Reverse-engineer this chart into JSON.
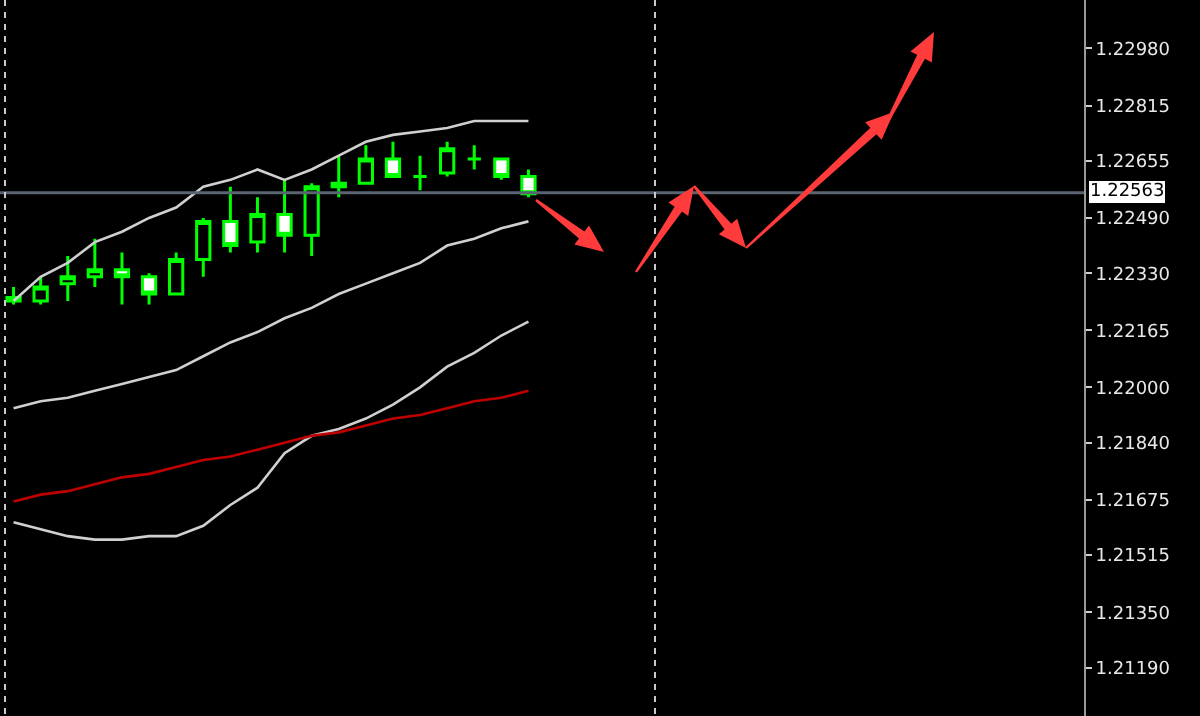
{
  "chart_data": {
    "type": "candlestick",
    "color": "#00ff00",
    "categories": [
      null,
      null,
      null,
      null,
      null,
      null,
      null,
      null,
      null,
      null,
      null,
      null,
      null,
      null,
      null,
      null,
      null,
      null,
      null,
      null,
      null,
      null,
      null,
      null,
      null,
      null,
      null,
      null,
      null,
      null,
      null,
      null,
      null,
      null,
      null,
      null,
      null,
      null,
      null,
      null
    ],
    "ohlc": [
      [
        1.2225,
        1.2229,
        1.2224,
        1.2226
      ],
      [
        1.2225,
        1.2232,
        1.2224,
        1.2229
      ],
      [
        1.223,
        1.2238,
        1.2225,
        1.2232
      ],
      [
        1.2232,
        1.2243,
        1.2229,
        1.2234
      ],
      [
        1.2234,
        1.2239,
        1.2224,
        1.2232
      ],
      [
        1.2232,
        1.2233,
        1.2224,
        1.2227
      ],
      [
        1.2227,
        1.2239,
        1.2227,
        1.2237
      ],
      [
        1.2237,
        1.2249,
        1.2232,
        1.2248
      ],
      [
        1.2248,
        1.2258,
        1.2239,
        1.2241
      ],
      [
        1.2242,
        1.2255,
        1.2239,
        1.225
      ],
      [
        1.225,
        1.226,
        1.2239,
        1.2244
      ],
      [
        1.2244,
        1.2259,
        1.2238,
        1.2258
      ],
      [
        1.2258,
        1.2267,
        1.2255,
        1.2259
      ],
      [
        1.2259,
        1.227,
        1.2259,
        1.2266
      ],
      [
        1.2266,
        1.2271,
        1.2261,
        1.2261
      ],
      [
        1.2261,
        1.2267,
        1.2257,
        1.2261
      ],
      [
        1.2262,
        1.2271,
        1.2261,
        1.2269
      ],
      [
        1.2266,
        1.227,
        1.2263,
        1.2266
      ],
      [
        1.2266,
        1.2266,
        1.226,
        1.2261
      ],
      [
        1.2261,
        1.2263,
        1.2255,
        1.2256
      ],
      null,
      null,
      null,
      null,
      null,
      null,
      null,
      null,
      null,
      null,
      null,
      null,
      null,
      null,
      null,
      null,
      null,
      null,
      null,
      null
    ],
    "series": [
      {
        "type": "line",
        "color": "#d0d0d0",
        "values": [
          1.2225,
          1.2232,
          1.2236,
          1.2242,
          1.2245,
          1.2249,
          1.2252,
          1.2258,
          1.226,
          1.2263,
          1.226,
          1.2263,
          1.2267,
          1.2271,
          1.2273,
          1.2274,
          1.2275,
          1.2277,
          1.2277,
          1.2277,
          null,
          null,
          null,
          null,
          null,
          null,
          null,
          null,
          null,
          null,
          null,
          null,
          null,
          null,
          null,
          null,
          null,
          null,
          null,
          null
        ]
      },
      {
        "type": "line",
        "color": "#d0d0d0",
        "values": [
          1.2194,
          1.2196,
          1.2197,
          1.2199,
          1.2201,
          1.2203,
          1.2205,
          1.2209,
          1.2213,
          1.2216,
          1.222,
          1.2223,
          1.2227,
          1.223,
          1.2233,
          1.2236,
          1.2241,
          1.2243,
          1.2246,
          1.2248,
          null,
          null,
          null,
          null,
          null,
          null,
          null,
          null,
          null,
          null,
          null,
          null,
          null,
          null,
          null,
          null,
          null,
          null,
          null,
          null
        ]
      },
      {
        "type": "line",
        "color": "#d0d0d0",
        "values": [
          1.2161,
          1.2159,
          1.2157,
          1.2156,
          1.2156,
          1.2157,
          1.2157,
          1.216,
          1.2166,
          1.2171,
          1.2181,
          1.2186,
          1.2188,
          1.2191,
          1.2195,
          1.22,
          1.2206,
          1.221,
          1.2215,
          1.2219,
          null,
          null,
          null,
          null,
          null,
          null,
          null,
          null,
          null,
          null,
          null,
          null,
          null,
          null,
          null,
          null,
          null,
          null,
          null,
          null
        ]
      },
      {
        "type": "line",
        "color": "#c00000",
        "values": [
          1.2167,
          1.2169,
          1.217,
          1.2172,
          1.2174,
          1.2175,
          1.2177,
          1.2179,
          1.218,
          1.2182,
          1.2184,
          1.2186,
          1.2187,
          1.2189,
          1.2191,
          1.2192,
          1.2194,
          1.2196,
          1.2197,
          1.2199,
          null,
          null,
          null,
          null,
          null,
          null,
          null,
          null,
          null,
          null,
          null,
          null,
          null,
          null,
          null,
          null,
          null,
          null,
          null,
          null
        ]
      }
    ],
    "ylim": [
      1.2105,
      1.2312
    ],
    "yticks": [
      {
        "value": 1.2298,
        "label": "1.22980"
      },
      {
        "value": 1.22815,
        "label": "1.22815"
      },
      {
        "value": 1.22655,
        "label": "1.22655"
      },
      {
        "value": 1.2249,
        "label": "1.22490"
      },
      {
        "value": 1.2233,
        "label": "1.22330"
      },
      {
        "value": 1.22165,
        "label": "1.22165"
      },
      {
        "value": 1.22,
        "label": "1.22000"
      },
      {
        "value": 1.2184,
        "label": "1.21840"
      },
      {
        "value": 1.21675,
        "label": "1.21675"
      },
      {
        "value": 1.21515,
        "label": "1.21515"
      },
      {
        "value": 1.2135,
        "label": "1.21350"
      },
      {
        "value": 1.2119,
        "label": "1.21190"
      }
    ],
    "ref_lines": [
      {
        "axis": "y",
        "value": 1.22563,
        "label": "1.22563",
        "color": "#5a6470"
      }
    ],
    "tick_labels": "y",
    "grid": false,
    "marker": "none",
    "line_style": "solid"
  }
}
